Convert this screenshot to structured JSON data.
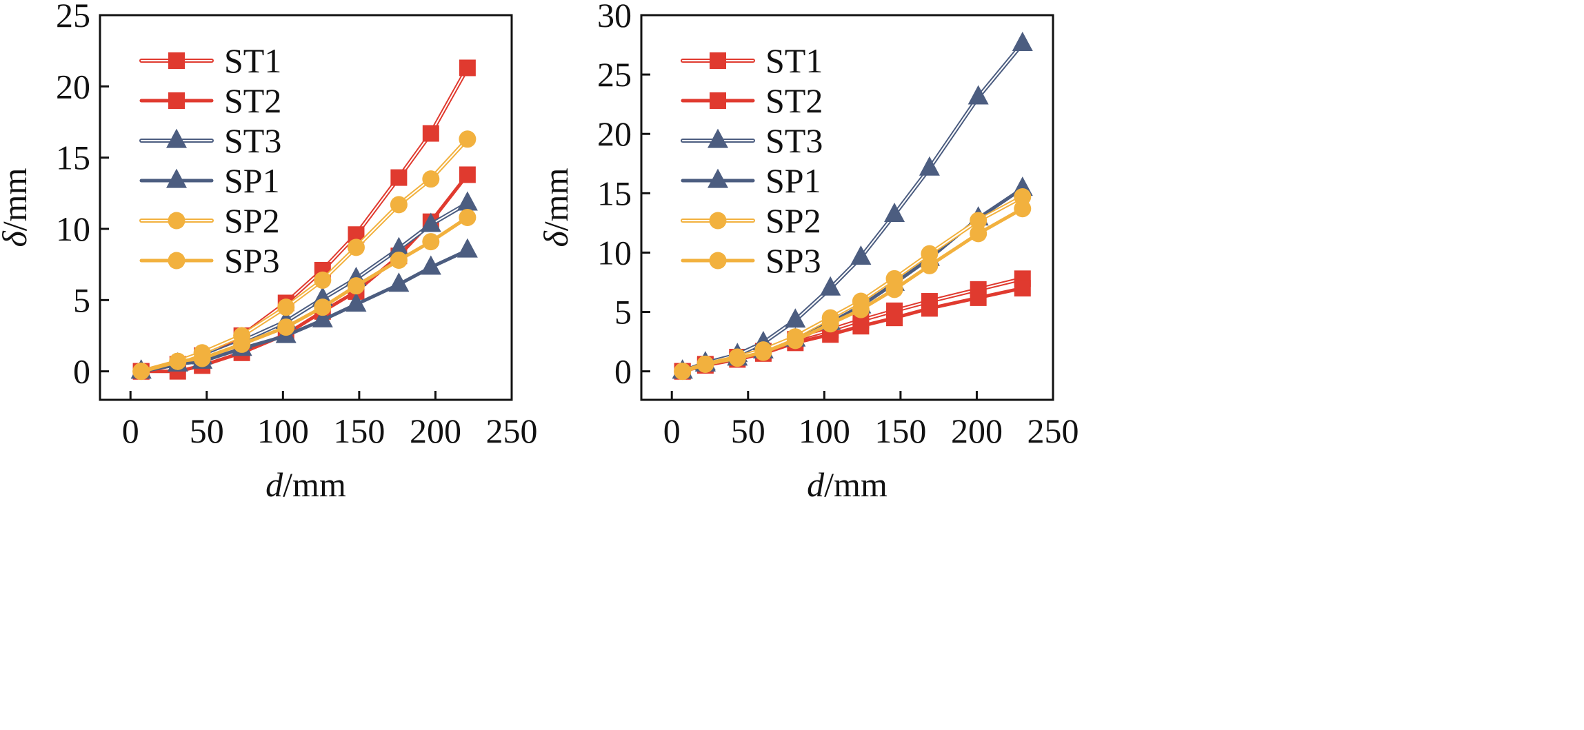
{
  "colors": {
    "red": "#e03a2f",
    "blue": "#4c5d80",
    "orange": "#f2b13e",
    "axis": "#111111"
  },
  "chart_data": [
    {
      "type": "line",
      "xlabel_var": "d",
      "xlabel_unit": "/mm",
      "ylabel_var": "δ",
      "ylabel_unit": "/mm",
      "xlim": [
        -20,
        250
      ],
      "ylim": [
        -2,
        25
      ],
      "xticks": [
        0,
        50,
        100,
        150,
        200,
        250
      ],
      "yticks": [
        0,
        5,
        10,
        15,
        20,
        25
      ],
      "grid": false,
      "legend": "top-left",
      "series": [
        {
          "name": "ST1",
          "style": "double",
          "marker": "square",
          "color": "red",
          "x": [
            7,
            31,
            47,
            73,
            102,
            126,
            148,
            176,
            197,
            221
          ],
          "y": [
            0,
            0.5,
            1.1,
            2.5,
            4.8,
            7.1,
            9.6,
            13.6,
            16.7,
            21.3
          ]
        },
        {
          "name": "ST2",
          "style": "solid",
          "marker": "square",
          "color": "red",
          "x": [
            7,
            31,
            47,
            73,
            102,
            126,
            148,
            176,
            197,
            221
          ],
          "y": [
            0,
            0.0,
            0.4,
            1.3,
            2.6,
            4.2,
            5.6,
            8.1,
            10.5,
            13.8
          ]
        },
        {
          "name": "ST3",
          "style": "double",
          "marker": "triangle",
          "color": "blue",
          "x": [
            7,
            31,
            47,
            73,
            102,
            126,
            148,
            176,
            197,
            221
          ],
          "y": [
            0,
            0.5,
            1.0,
            2.1,
            3.5,
            5.1,
            6.5,
            8.6,
            10.3,
            11.8
          ]
        },
        {
          "name": "SP1",
          "style": "solid",
          "marker": "triangle",
          "color": "blue",
          "x": [
            7,
            31,
            47,
            73,
            102,
            126,
            148,
            176,
            197,
            221
          ],
          "y": [
            0,
            0.5,
            0.7,
            1.6,
            2.5,
            3.6,
            4.7,
            6.1,
            7.3,
            8.5
          ]
        },
        {
          "name": "SP2",
          "style": "double",
          "marker": "circle",
          "color": "orange",
          "x": [
            7,
            31,
            47,
            73,
            102,
            126,
            148,
            176,
            197,
            221
          ],
          "y": [
            0,
            0.7,
            1.3,
            2.5,
            4.5,
            6.4,
            8.7,
            11.7,
            13.5,
            16.3
          ]
        },
        {
          "name": "SP3",
          "style": "solid",
          "marker": "circle",
          "color": "orange",
          "x": [
            7,
            31,
            47,
            73,
            102,
            126,
            148,
            176,
            197,
            221
          ],
          "y": [
            0,
            0.7,
            0.9,
            1.9,
            3.1,
            4.5,
            6.0,
            7.8,
            9.1,
            10.8
          ]
        }
      ]
    },
    {
      "type": "line",
      "xlabel_var": "d",
      "xlabel_unit": "/mm",
      "ylabel_var": "δ",
      "ylabel_unit": "/mm",
      "xlim": [
        -20,
        250
      ],
      "ylim": [
        -2.4,
        30
      ],
      "xticks": [
        0,
        50,
        100,
        150,
        200,
        250
      ],
      "yticks": [
        0,
        5,
        10,
        15,
        20,
        25,
        30
      ],
      "grid": false,
      "legend": "top-left",
      "series": [
        {
          "name": "ST1",
          "style": "double",
          "marker": "square",
          "color": "red",
          "x": [
            7,
            22,
            43,
            60,
            81,
            104,
            124,
            146,
            169,
            201,
            230
          ],
          "y": [
            0,
            0.6,
            1.2,
            1.7,
            2.7,
            3.5,
            4.3,
            5.1,
            5.9,
            6.9,
            7.8
          ]
        },
        {
          "name": "ST2",
          "style": "solid",
          "marker": "square",
          "color": "red",
          "x": [
            7,
            22,
            43,
            60,
            81,
            104,
            124,
            146,
            169,
            201,
            230
          ],
          "y": [
            0,
            0.5,
            1.0,
            1.5,
            2.4,
            3.1,
            3.8,
            4.5,
            5.3,
            6.2,
            7.0
          ]
        },
        {
          "name": "ST3",
          "style": "double",
          "marker": "triangle",
          "color": "blue",
          "x": [
            7,
            22,
            43,
            60,
            81,
            104,
            124,
            146,
            169,
            201,
            230
          ],
          "y": [
            0,
            0.7,
            1.4,
            2.4,
            4.3,
            7.0,
            9.6,
            13.2,
            17.1,
            23.1,
            27.6
          ]
        },
        {
          "name": "SP1",
          "style": "solid",
          "marker": "triangle",
          "color": "blue",
          "x": [
            7,
            22,
            43,
            60,
            81,
            104,
            124,
            146,
            169,
            201,
            230
          ],
          "y": [
            0,
            0.6,
            1.1,
            1.7,
            2.7,
            4.1,
            5.5,
            7.4,
            9.5,
            12.9,
            15.4
          ]
        },
        {
          "name": "SP2",
          "style": "double",
          "marker": "circle",
          "color": "orange",
          "x": [
            7,
            22,
            43,
            60,
            81,
            104,
            124,
            146,
            169,
            201,
            230
          ],
          "y": [
            0,
            0.6,
            1.2,
            1.8,
            2.9,
            4.5,
            5.9,
            7.8,
            9.9,
            12.7,
            14.7
          ]
        },
        {
          "name": "SP3",
          "style": "solid",
          "marker": "circle",
          "color": "orange",
          "x": [
            7,
            22,
            43,
            60,
            81,
            104,
            124,
            146,
            169,
            201,
            230
          ],
          "y": [
            0,
            0.6,
            1.1,
            1.6,
            2.6,
            4.0,
            5.2,
            6.9,
            8.9,
            11.6,
            13.7
          ]
        }
      ]
    }
  ]
}
